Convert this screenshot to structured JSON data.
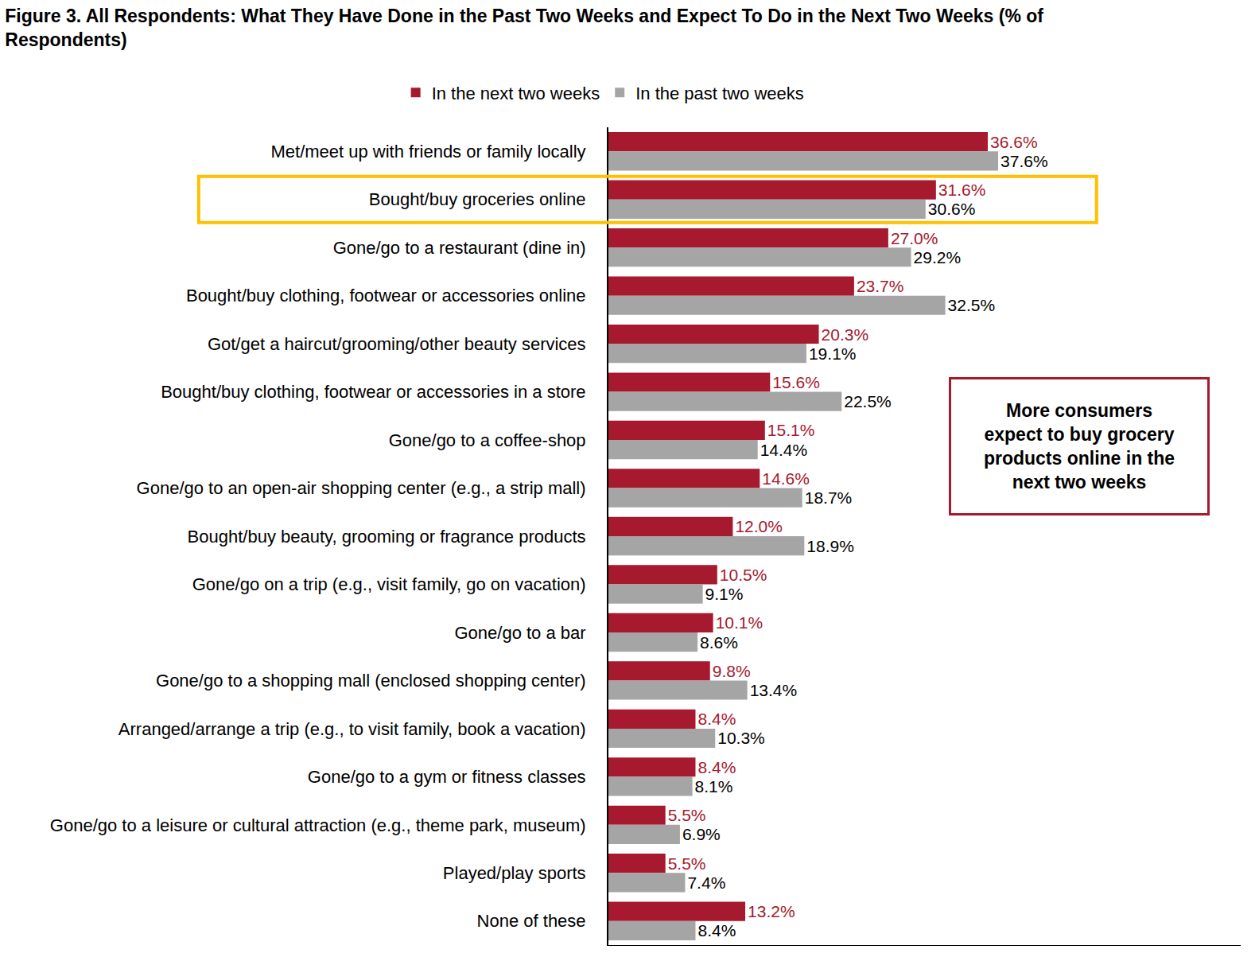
{
  "chart_data": {
    "type": "bar",
    "orientation": "horizontal",
    "title": "Figure 3. All Respondents: What They Have Done in the Past Two Weeks and Expect To Do in the Next Two Weeks (% of\nRespondents)",
    "categories": [
      "Met/meet up with friends or family locally",
      "Bought/buy groceries online",
      "Gone/go to a restaurant (dine in)",
      "Bought/buy clothing, footwear or accessories online",
      "Got/get a haircut/grooming/other beauty services",
      "Bought/buy clothing, footwear or accessories in a store",
      "Gone/go to a coffee-shop",
      "Gone/go to an open-air shopping center (e.g., a strip mall)",
      "Bought/buy beauty, grooming or fragrance products",
      "Gone/go on a trip (e.g., visit family, go on vacation)",
      "Gone/go to a bar",
      "Gone/go to a shopping mall (enclosed shopping center)",
      "Arranged/arrange a trip (e.g., to visit family, book a vacation)",
      "Gone/go to a gym or fitness classes",
      "Gone/go to a leisure or cultural attraction (e.g., theme park, museum)",
      "Played/play sports",
      "None of these"
    ],
    "series": [
      {
        "name": "In the next two weeks",
        "color": "#A6192E",
        "values": [
          36.6,
          31.6,
          27.0,
          23.7,
          20.3,
          15.6,
          15.1,
          14.6,
          12.0,
          10.5,
          10.1,
          9.8,
          8.4,
          8.4,
          5.5,
          5.5,
          13.2
        ],
        "value_labels": [
          "36.6%",
          "31.6%",
          "27.0%",
          "23.7%",
          "20.3%",
          "15.6%",
          "15.1%",
          "14.6%",
          "12.0%",
          "10.5%",
          "10.1%",
          "9.8%",
          "8.4%",
          "8.4%",
          "5.5%",
          "5.5%",
          "13.2%"
        ]
      },
      {
        "name": "In the past two weeks",
        "color": "#A5A5A5",
        "values": [
          37.6,
          30.6,
          29.2,
          32.5,
          19.1,
          22.5,
          14.4,
          18.7,
          18.9,
          9.1,
          8.6,
          13.4,
          10.3,
          8.1,
          6.9,
          7.4,
          8.4
        ],
        "value_labels": [
          "37.6%",
          "30.6%",
          "29.2%",
          "32.5%",
          "19.1%",
          "22.5%",
          "14.4%",
          "18.7%",
          "18.9%",
          "9.1%",
          "8.6%",
          "13.4%",
          "10.3%",
          "8.1%",
          "6.9%",
          "7.4%",
          "8.4%"
        ]
      }
    ],
    "xlim": [
      0,
      61
    ],
    "grid": false,
    "legend": "top",
    "data_labels": true,
    "tick_labels": "y",
    "highlight": "Bought/buy groceries online",
    "annotations": [
      {
        "text": "More consumers\nexpect to buy grocery\nproducts online in the\nnext two weeks"
      }
    ]
  }
}
